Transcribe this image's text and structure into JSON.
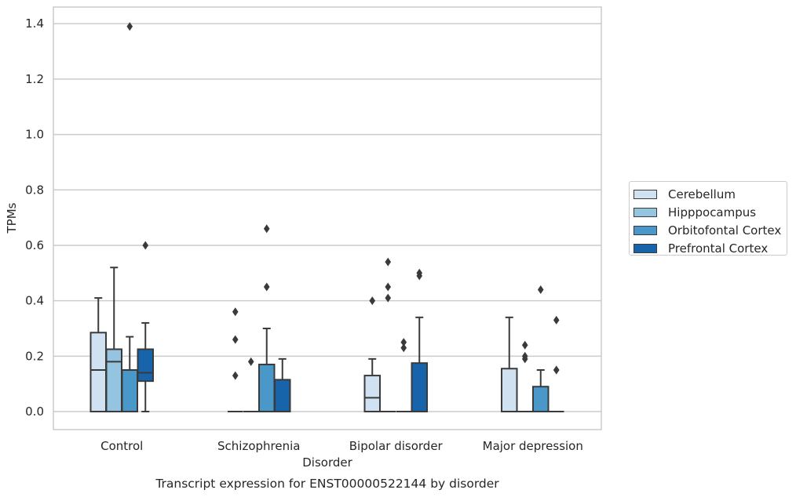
{
  "chart_data": {
    "type": "box",
    "title": "Transcript expression for ENST00000522144 by disorder",
    "xlabel": "Disorder",
    "ylabel": "TPMs",
    "ylim": [
      -0.065,
      1.46
    ],
    "yticks": [
      "0.0",
      "0.2",
      "0.4",
      "0.6",
      "0.8",
      "1.0",
      "1.2",
      "1.4"
    ],
    "grid": "horizontal",
    "legend_placement": "right",
    "categories": [
      "Control",
      "Schizophrenia",
      "Bipolar disorder",
      "Major depression"
    ],
    "series": [
      {
        "name": "Cerebellum",
        "color": "#d0e1f2",
        "boxes": [
          {
            "whislo": 0.0,
            "q1": 0.0,
            "med": 0.15,
            "q3": 0.285,
            "whishi": 0.41,
            "fliers": []
          },
          {
            "whislo": 0.0,
            "q1": 0.0,
            "med": 0.0,
            "q3": 0.0,
            "whishi": 0.0,
            "fliers": [
              0.13,
              0.26,
              0.36
            ]
          },
          {
            "whislo": 0.0,
            "q1": 0.0,
            "med": 0.05,
            "q3": 0.13,
            "whishi": 0.19,
            "fliers": [
              0.4
            ]
          },
          {
            "whislo": 0.0,
            "q1": 0.0,
            "med": 0.0,
            "q3": 0.155,
            "whishi": 0.34,
            "fliers": []
          }
        ]
      },
      {
        "name": "Hipppocampus",
        "color": "#94c4df",
        "boxes": [
          {
            "whislo": 0.0,
            "q1": 0.0,
            "med": 0.18,
            "q3": 0.225,
            "whishi": 0.52,
            "fliers": []
          },
          {
            "whislo": 0.0,
            "q1": 0.0,
            "med": 0.0,
            "q3": 0.0,
            "whishi": 0.0,
            "fliers": [
              0.18
            ]
          },
          {
            "whislo": 0.0,
            "q1": 0.0,
            "med": 0.0,
            "q3": 0.0,
            "whishi": 0.0,
            "fliers": [
              0.41,
              0.45,
              0.54
            ]
          },
          {
            "whislo": 0.0,
            "q1": 0.0,
            "med": 0.0,
            "q3": 0.0,
            "whishi": 0.0,
            "fliers": [
              0.19,
              0.2,
              0.24
            ]
          }
        ]
      },
      {
        "name": "Orbitofontal Cortex",
        "color": "#4a98c9",
        "boxes": [
          {
            "whislo": 0.0,
            "q1": 0.0,
            "med": 0.15,
            "q3": 0.15,
            "whishi": 0.27,
            "fliers": [
              1.39
            ]
          },
          {
            "whislo": 0.0,
            "q1": 0.0,
            "med": 0.0,
            "q3": 0.17,
            "whishi": 0.3,
            "fliers": [
              0.45,
              0.66
            ]
          },
          {
            "whislo": 0.0,
            "q1": 0.0,
            "med": 0.0,
            "q3": 0.0,
            "whishi": 0.0,
            "fliers": [
              0.23,
              0.25
            ]
          },
          {
            "whislo": 0.0,
            "q1": 0.0,
            "med": 0.0,
            "q3": 0.09,
            "whishi": 0.15,
            "fliers": [
              0.44
            ]
          }
        ]
      },
      {
        "name": "Prefrontal Cortex",
        "color": "#1764ab",
        "boxes": [
          {
            "whislo": 0.0,
            "q1": 0.11,
            "med": 0.14,
            "q3": 0.225,
            "whishi": 0.32,
            "fliers": [
              0.6
            ]
          },
          {
            "whislo": 0.0,
            "q1": 0.0,
            "med": 0.0,
            "q3": 0.115,
            "whishi": 0.19,
            "fliers": []
          },
          {
            "whislo": 0.0,
            "q1": 0.0,
            "med": 0.0,
            "q3": 0.175,
            "whishi": 0.34,
            "fliers": [
              0.49,
              0.5
            ]
          },
          {
            "whislo": 0.0,
            "q1": 0.0,
            "med": 0.0,
            "q3": 0.0,
            "whishi": 0.0,
            "fliers": [
              0.15,
              0.15,
              0.33
            ]
          }
        ]
      }
    ]
  }
}
